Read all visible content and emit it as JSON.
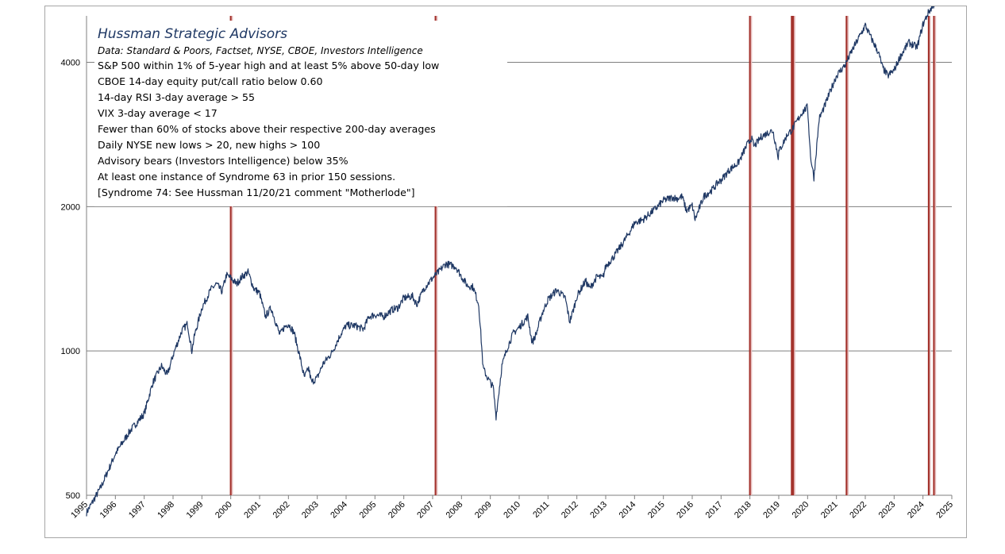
{
  "colors": {
    "price_line": "#1f3864",
    "signal": "#a3312b",
    "grid": "#7f7f7f",
    "title": "#1f3864"
  },
  "annotation": {
    "title": "Hussman Strategic Advisors",
    "source": "Data: Standard & Poors, Factset, NYSE, CBOE, Investors Intelligence",
    "lines": [
      "S&P 500 within 1% of 5-year high and at least 5% above 50-day low",
      "CBOE 14-day equity put/call ratio below 0.60",
      "14-day RSI 3-day average > 55",
      "VIX 3-day average < 17",
      "Fewer than 60% of stocks above their respective 200-day averages",
      "Daily NYSE new lows > 20, new highs > 100",
      "Advisory bears (Investors Intelligence) below 35%",
      "At least one instance of Syndrome 63 in prior 150 sessions.",
      "[Syndrome 74:  See Hussman 11/20/21 comment \"Motherlode\"]"
    ]
  },
  "chart_data": {
    "type": "line",
    "title": "",
    "xlabel": "",
    "ylabel": "",
    "y_scale": "log",
    "ylim": [
      500,
      5000
    ],
    "xlim": [
      1995,
      2025
    ],
    "y_ticks": [
      500,
      1000,
      2000,
      4000
    ],
    "y_tick_labels": [
      "500",
      "1000",
      "2000",
      "4000"
    ],
    "x_ticks": [
      1995,
      1996,
      1997,
      1998,
      1999,
      2000,
      2001,
      2002,
      2003,
      2004,
      2005,
      2006,
      2007,
      2008,
      2009,
      2010,
      2011,
      2012,
      2013,
      2014,
      2015,
      2016,
      2017,
      2018,
      2019,
      2020,
      2021,
      2022,
      2023,
      2024,
      2025
    ],
    "x_tick_labels": [
      "1995",
      "1996",
      "1997",
      "1998",
      "1999",
      "2000",
      "2001",
      "2002",
      "2003",
      "2004",
      "2005",
      "2006",
      "2007",
      "2008",
      "2009",
      "2010",
      "2011",
      "2012",
      "2013",
      "2014",
      "2015",
      "2016",
      "2017",
      "2018",
      "2019",
      "2020",
      "2021",
      "2022",
      "2023",
      "2024",
      "2025"
    ],
    "grid": true,
    "series": [
      {
        "x": [
          1995.0,
          1995.5,
          1996.0,
          1996.5,
          1997.0,
          1997.3,
          1997.6,
          1997.8,
          1998.0,
          1998.3,
          1998.5,
          1998.65,
          1998.75,
          1999.0,
          1999.3,
          1999.5,
          1999.7,
          1999.85,
          2000.0,
          2000.2,
          2000.4,
          2000.6,
          2000.8,
          2001.0,
          2001.2,
          2001.4,
          2001.7,
          2001.85,
          2002.0,
          2002.2,
          2002.4,
          2002.55,
          2002.7,
          2002.8,
          2003.0,
          2003.2,
          2003.5,
          2003.8,
          2004.0,
          2004.3,
          2004.6,
          2004.8,
          2005.0,
          2005.3,
          2005.6,
          2005.8,
          2006.0,
          2006.3,
          2006.45,
          2006.7,
          2007.0,
          2007.2,
          2007.45,
          2007.8,
          2008.0,
          2008.2,
          2008.4,
          2008.6,
          2008.75,
          2008.9,
          2009.1,
          2009.2,
          2009.4,
          2009.6,
          2009.8,
          2010.0,
          2010.3,
          2010.45,
          2010.6,
          2010.8,
          2011.0,
          2011.3,
          2011.6,
          2011.75,
          2011.9,
          2012.0,
          2012.3,
          2012.45,
          2012.7,
          2012.9,
          2013.0,
          2013.3,
          2013.6,
          2013.9,
          2014.0,
          2014.3,
          2014.6,
          2014.8,
          2015.0,
          2015.3,
          2015.5,
          2015.65,
          2015.8,
          2016.0,
          2016.1,
          2016.4,
          2016.7,
          2016.9,
          2017.0,
          2017.3,
          2017.6,
          2017.9,
          2018.05,
          2018.15,
          2018.4,
          2018.7,
          2018.8,
          2018.98,
          2019.0,
          2019.3,
          2019.45,
          2019.6,
          2019.8,
          2020.0,
          2020.1,
          2020.22,
          2020.4,
          2020.6,
          2020.8,
          2021.0,
          2021.3,
          2021.6,
          2021.9,
          2022.0,
          2022.2,
          2022.45,
          2022.6,
          2022.78,
          2023.0,
          2023.2,
          2023.5,
          2023.8,
          2024.0,
          2024.2,
          2024.4,
          2024.5
        ],
        "values": [
          460,
          520,
          610,
          680,
          740,
          860,
          930,
          890,
          980,
          1100,
          1140,
          1000,
          1080,
          1230,
          1340,
          1380,
          1330,
          1440,
          1420,
          1380,
          1430,
          1460,
          1350,
          1320,
          1180,
          1230,
          1080,
          1120,
          1140,
          1090,
          970,
          880,
          920,
          860,
          880,
          940,
          990,
          1080,
          1130,
          1130,
          1110,
          1180,
          1190,
          1180,
          1220,
          1230,
          1290,
          1300,
          1250,
          1350,
          1420,
          1460,
          1520,
          1500,
          1430,
          1370,
          1360,
          1250,
          920,
          880,
          840,
          730,
          930,
          1020,
          1090,
          1120,
          1180,
          1040,
          1090,
          1200,
          1280,
          1340,
          1290,
          1150,
          1230,
          1300,
          1400,
          1350,
          1430,
          1420,
          1500,
          1580,
          1680,
          1800,
          1850,
          1880,
          1950,
          2000,
          2060,
          2090,
          2080,
          2100,
          1960,
          2010,
          1880,
          2100,
          2170,
          2250,
          2270,
          2390,
          2470,
          2690,
          2780,
          2670,
          2800,
          2870,
          2880,
          2540,
          2600,
          2830,
          2890,
          2990,
          3140,
          3230,
          2550,
          2300,
          3050,
          3250,
          3500,
          3750,
          3950,
          4300,
          4650,
          4780,
          4500,
          4200,
          3900,
          3750,
          3850,
          4100,
          4400,
          4300,
          4800,
          5100,
          5300,
          5500
        ]
      }
    ],
    "signals_x": [
      2000.0,
      2007.1,
      2018.0,
      2019.45,
      2019.5,
      2021.35,
      2024.2,
      2024.38
    ]
  }
}
